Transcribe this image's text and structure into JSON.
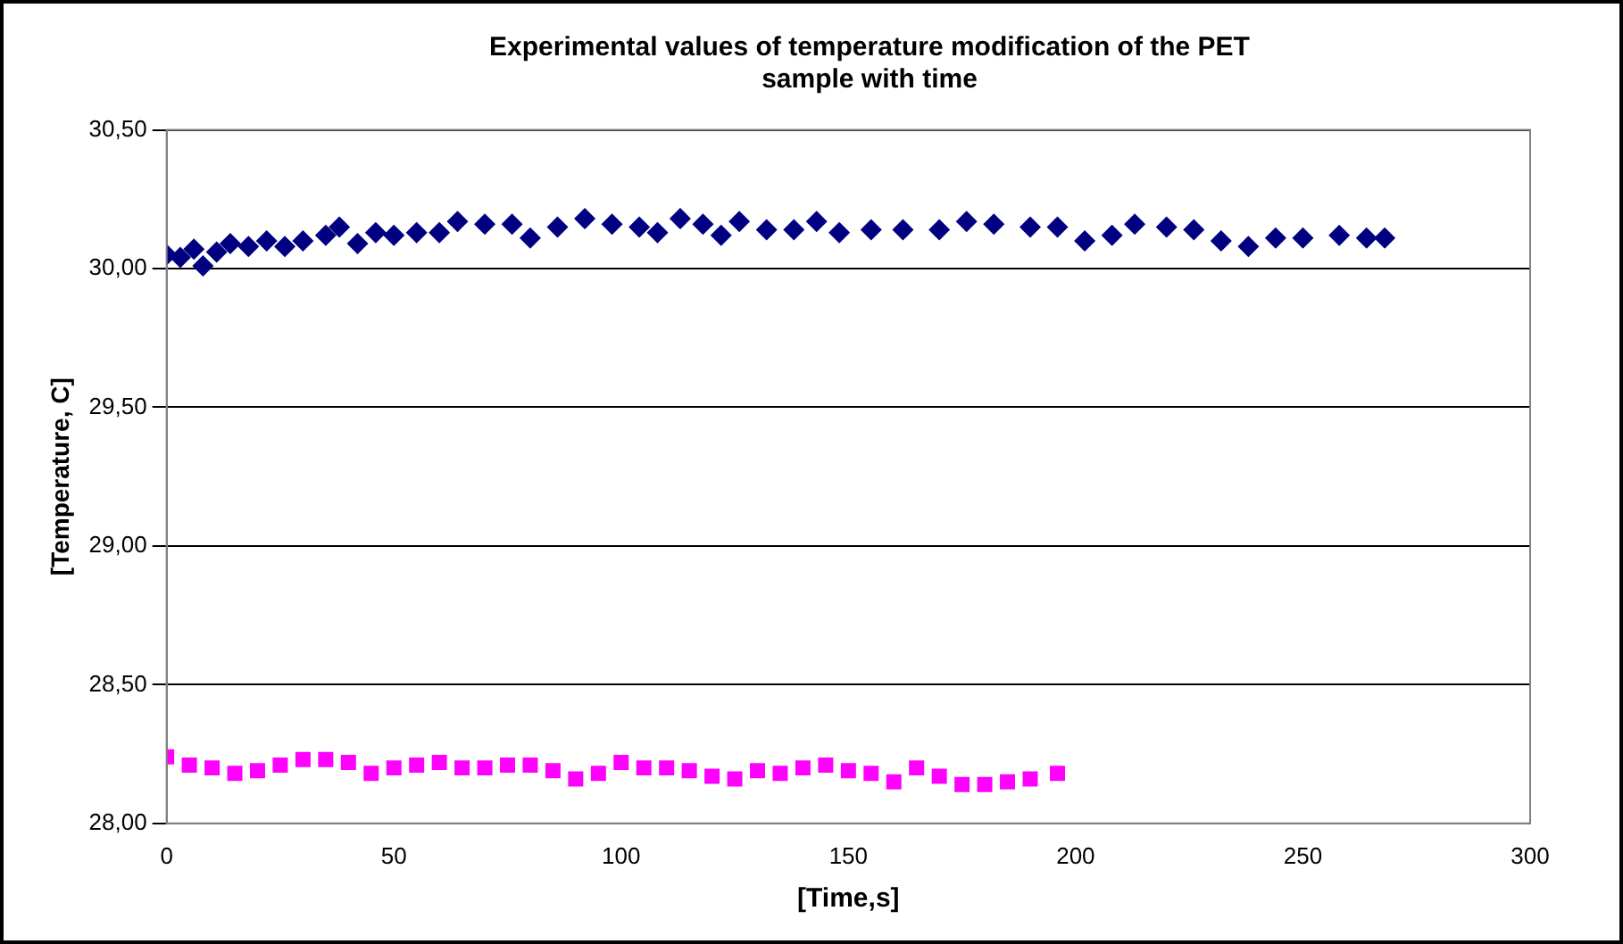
{
  "chart_data": {
    "type": "scatter",
    "title": "Experimental values of temperature modification of the PET sample with time",
    "xlabel": "[Time,s]",
    "ylabel": "[Temperature, C]",
    "xlim": [
      0,
      300
    ],
    "xticks": [
      0,
      50,
      100,
      150,
      200,
      250,
      300
    ],
    "ylim": [
      28,
      30.5
    ],
    "yticks": [
      {
        "value": 28,
        "label": "28,00"
      },
      {
        "value": 28.5,
        "label": "28,50"
      },
      {
        "value": 29,
        "label": "29,00"
      },
      {
        "value": 29.5,
        "label": "29,50"
      },
      {
        "value": 30,
        "label": "30,00"
      },
      {
        "value": 30.5,
        "label": "30,50"
      }
    ],
    "grid": "y",
    "legend": false,
    "series": [
      {
        "color": "#000080",
        "marker": "diamond",
        "x": [
          0,
          3,
          6,
          8,
          11,
          14,
          18,
          22,
          26,
          30,
          35,
          38,
          42,
          46,
          50,
          55,
          60,
          64,
          70,
          76,
          80,
          86,
          92,
          98,
          104,
          108,
          113,
          118,
          122,
          126,
          132,
          138,
          143,
          148,
          155,
          162,
          170,
          176,
          182,
          190,
          196,
          202,
          208,
          213,
          220,
          226,
          232,
          238,
          244,
          250,
          258,
          264,
          268
        ],
        "values": [
          30.05,
          30.04,
          30.07,
          30.01,
          30.06,
          30.09,
          30.08,
          30.1,
          30.08,
          30.1,
          30.12,
          30.15,
          30.09,
          30.13,
          30.12,
          30.13,
          30.13,
          30.17,
          30.16,
          30.16,
          30.11,
          30.15,
          30.18,
          30.16,
          30.15,
          30.13,
          30.18,
          30.16,
          30.12,
          30.17,
          30.14,
          30.14,
          30.17,
          30.13,
          30.14,
          30.14,
          30.14,
          30.17,
          30.16,
          30.15,
          30.15,
          30.1,
          30.12,
          30.16,
          30.15,
          30.14,
          30.1,
          30.08,
          30.11,
          30.11,
          30.12,
          30.11,
          30.11
        ]
      },
      {
        "color": "#ff00ff",
        "marker": "square",
        "x": [
          0,
          5,
          10,
          15,
          20,
          25,
          30,
          35,
          40,
          45,
          50,
          55,
          60,
          65,
          70,
          75,
          80,
          85,
          90,
          95,
          100,
          105,
          110,
          115,
          120,
          125,
          130,
          135,
          140,
          145,
          150,
          155,
          160,
          165,
          170,
          175,
          180,
          185,
          190,
          196
        ],
        "values": [
          28.24,
          28.21,
          28.2,
          28.18,
          28.19,
          28.21,
          28.23,
          28.23,
          28.22,
          28.18,
          28.2,
          28.21,
          28.22,
          28.2,
          28.2,
          28.21,
          28.21,
          28.19,
          28.16,
          28.18,
          28.22,
          28.2,
          28.2,
          28.19,
          28.17,
          28.16,
          28.19,
          28.18,
          28.2,
          28.21,
          28.19,
          28.18,
          28.15,
          28.2,
          28.17,
          28.14,
          28.14,
          28.15,
          28.16,
          28.18
        ]
      }
    ]
  }
}
